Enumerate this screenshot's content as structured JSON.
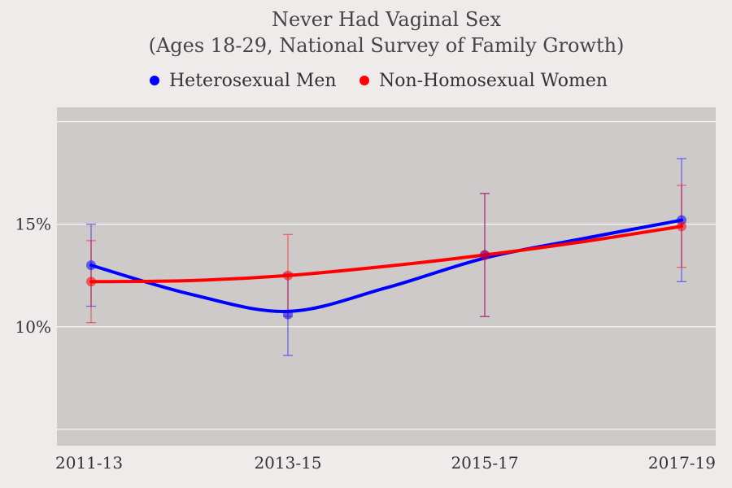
{
  "chart_data": {
    "type": "line",
    "title": "Never Had Vaginal Sex",
    "subtitle": "(Ages 18-29, National Survey of Family Growth)",
    "xlabel": "",
    "ylabel": "",
    "categories": [
      "2011-13",
      "2013-15",
      "2015-17",
      "2017-19"
    ],
    "y_ticks": [
      10,
      15
    ],
    "y_tick_labels": [
      "10%",
      "15%"
    ],
    "y_gridlines": [
      5,
      10,
      15,
      20
    ],
    "ylim": [
      4.2,
      20.7
    ],
    "grid": true,
    "legend_position": "top",
    "series": [
      {
        "name": "Heterosexual Men",
        "color": "#0000ff",
        "values": [
          13.0,
          10.6,
          13.5,
          15.2
        ],
        "error_low": [
          11.0,
          8.6,
          10.5,
          12.2
        ],
        "error_high": [
          15.0,
          12.6,
          16.5,
          18.2
        ],
        "curve": [
          [
            0,
            13.0
          ],
          [
            0.5,
            11.6
          ],
          [
            1,
            10.75
          ],
          [
            1.5,
            11.9
          ],
          [
            2,
            13.35
          ],
          [
            2.5,
            14.3
          ],
          [
            3,
            15.2
          ]
        ]
      },
      {
        "name": "Non-Homosexual Women",
        "color": "#ff0000",
        "values": [
          12.2,
          12.5,
          13.5,
          14.9
        ],
        "error_low": [
          10.2,
          10.5,
          10.5,
          12.9
        ],
        "error_high": [
          14.2,
          14.5,
          16.5,
          16.9
        ],
        "curve": [
          [
            0,
            12.2
          ],
          [
            0.5,
            12.25
          ],
          [
            1,
            12.5
          ],
          [
            1.5,
            12.95
          ],
          [
            2,
            13.5
          ],
          [
            2.5,
            14.15
          ],
          [
            3,
            14.9
          ]
        ]
      }
    ],
    "colors": {
      "background": "#efebeb",
      "plot_background": "#cfcaca",
      "grid": "#ffffff"
    }
  }
}
